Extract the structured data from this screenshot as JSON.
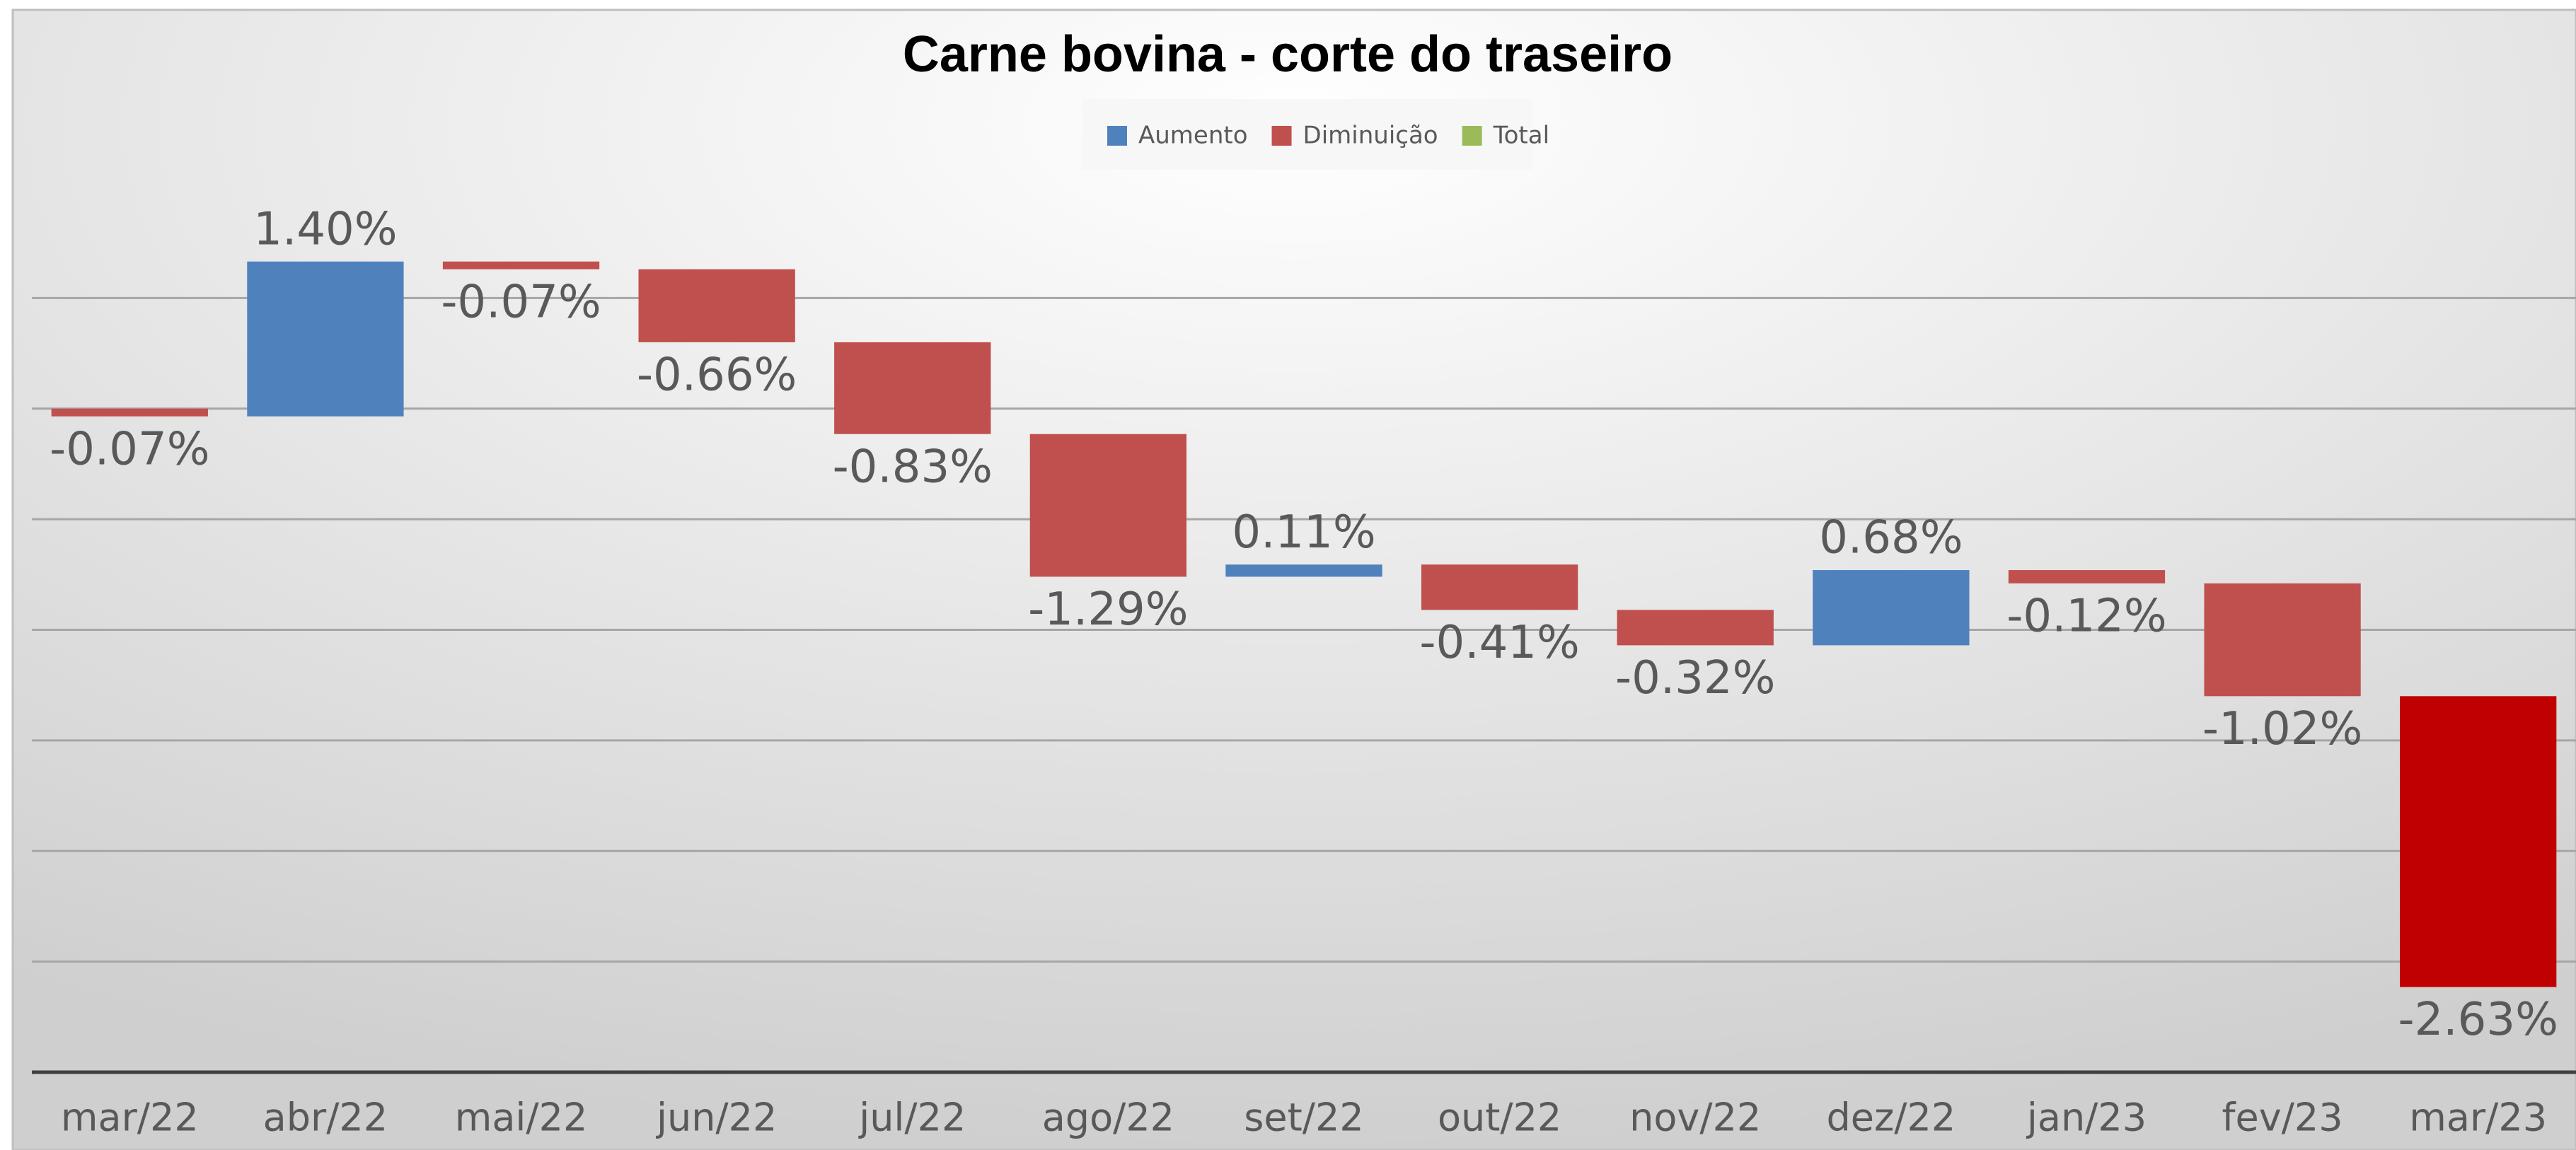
{
  "chart_data": {
    "type": "waterfall",
    "title": "Carne bovina - corte do traseiro",
    "categories": [
      "mar/22",
      "abr/22",
      "mai/22",
      "jun/22",
      "jul/22",
      "ago/22",
      "set/22",
      "out/22",
      "nov/22",
      "dez/22",
      "jan/23",
      "fev/23",
      "mar/23"
    ],
    "values": [
      -0.07,
      1.4,
      -0.07,
      -0.66,
      -0.83,
      -1.29,
      0.11,
      -0.41,
      -0.32,
      0.68,
      -0.12,
      -1.02,
      -2.63
    ],
    "value_labels": [
      "-0.07%",
      "1.40%",
      "-0.07%",
      "-0.66%",
      "-0.83%",
      "-1.29%",
      "0.11%",
      "-0.41%",
      "-0.32%",
      "0.68%",
      "-0.12%",
      "-1.02%",
      "-2.63%"
    ],
    "colors": [
      "#c0504d",
      "#4f81bd",
      "#c0504d",
      "#c0504d",
      "#c0504d",
      "#c0504d",
      "#4f81bd",
      "#c0504d",
      "#c0504d",
      "#4f81bd",
      "#c0504d",
      "#c0504d",
      "#c00000"
    ],
    "legend": [
      {
        "name": "Aumento",
        "color": "#4f81bd"
      },
      {
        "name": "Diminuição",
        "color": "#c0504d"
      },
      {
        "name": "Total",
        "color": "#9bbb59"
      }
    ],
    "ylim": [
      -6,
      2
    ],
    "yticks": [
      -6,
      -5,
      -4,
      -3,
      -2,
      -1,
      0,
      1
    ],
    "grid": true
  }
}
